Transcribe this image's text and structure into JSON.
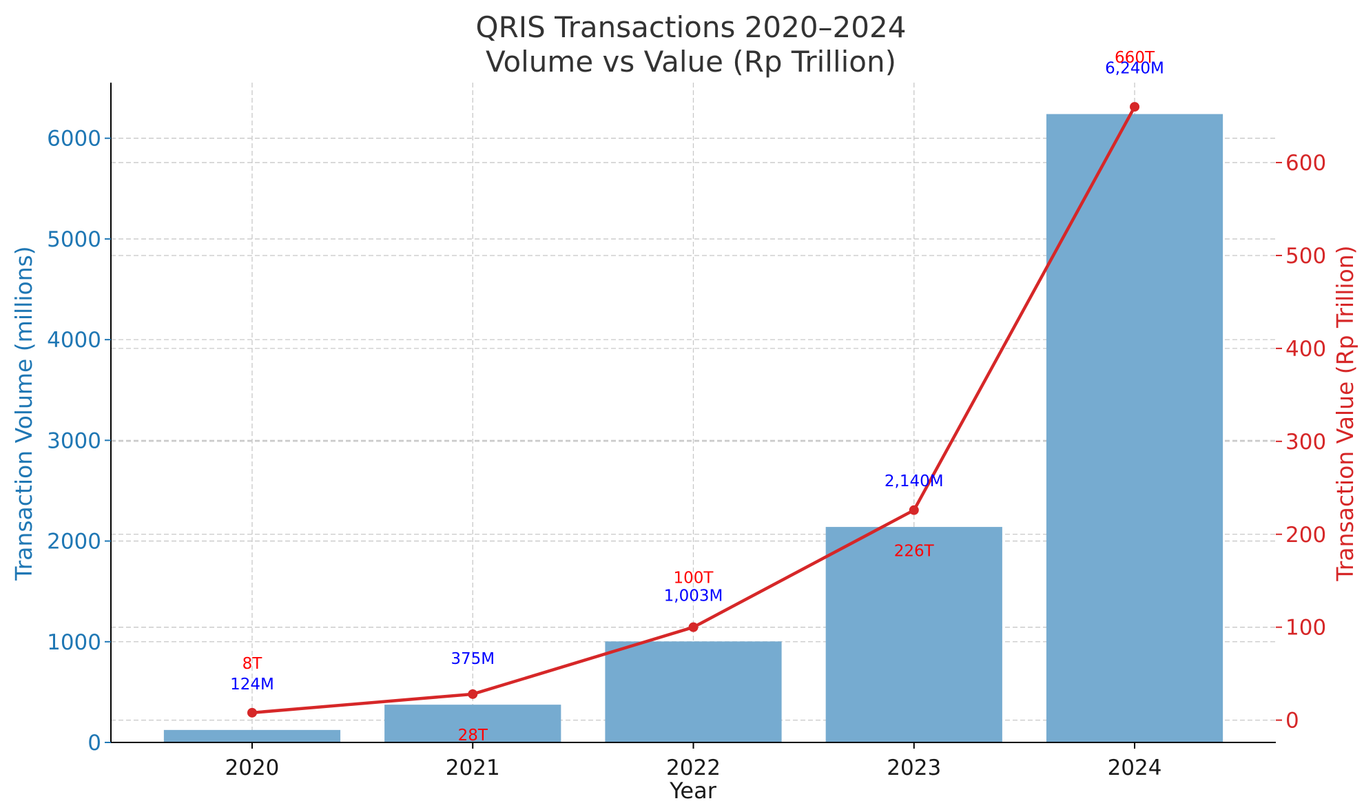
{
  "chart_data": {
    "type": "bar",
    "title": [
      "QRIS Transactions 2020–2024",
      "Volume vs Value (Rp Trillion)"
    ],
    "xlabel": "Year",
    "categories": [
      "2020",
      "2021",
      "2022",
      "2023",
      "2024"
    ],
    "grid": true,
    "series": [
      {
        "name": "Transaction Volume (millions)",
        "type": "bar",
        "axis": "left",
        "color": "#76abd0",
        "values": [
          124,
          375,
          1003,
          2140,
          6240
        ],
        "labels": [
          "124M",
          "375M",
          "1,003M",
          "2,140M",
          "6,240M"
        ]
      },
      {
        "name": "Transaction Value (Rp Trillion)",
        "type": "line",
        "axis": "right",
        "color": "#d62728",
        "values": [
          8,
          28,
          100,
          226,
          660
        ],
        "labels": [
          "8T",
          "28T",
          "100T",
          "226T",
          "660T"
        ]
      }
    ],
    "y_left": {
      "label": "Transaction Volume (millions)",
      "range": [
        0,
        6552
      ],
      "ticks": [
        0,
        1000,
        2000,
        3000,
        4000,
        5000,
        6000
      ],
      "color": "#1f77b4"
    },
    "y_right": {
      "label": "Transaction Value (Rp Trillion)",
      "range": [
        -24,
        686
      ],
      "ticks": [
        0,
        100,
        200,
        300,
        400,
        500,
        600
      ],
      "color": "#d62728"
    }
  }
}
